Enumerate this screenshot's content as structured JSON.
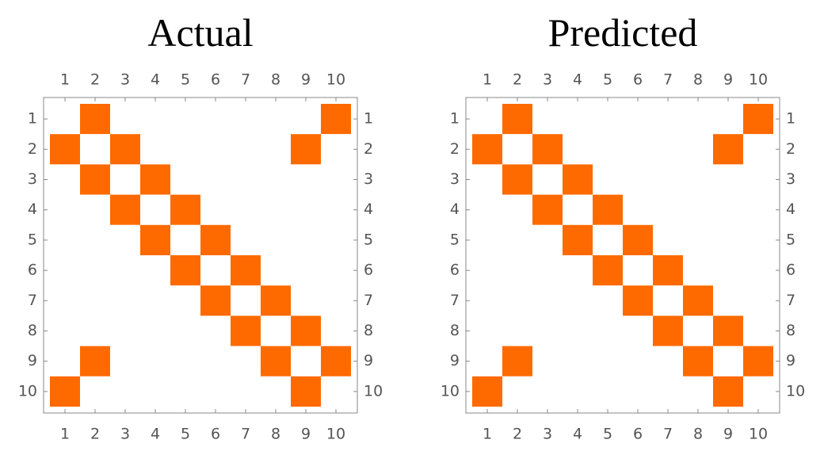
{
  "chart_data": [
    {
      "type": "matrix",
      "title": "Actual",
      "color": "#ff6a00",
      "empty_color": "#ffffff",
      "xlim": [
        0.5,
        10.5
      ],
      "ylim": [
        0.5,
        10.5
      ],
      "y_inverted": true,
      "xticks": [
        1,
        2,
        3,
        4,
        5,
        6,
        7,
        8,
        9,
        10
      ],
      "yticks": [
        1,
        2,
        3,
        4,
        5,
        6,
        7,
        8,
        9,
        10
      ],
      "z": [
        [
          0,
          1,
          0,
          0,
          0,
          0,
          0,
          0,
          0,
          1
        ],
        [
          1,
          0,
          1,
          0,
          0,
          0,
          0,
          0,
          1,
          0
        ],
        [
          0,
          1,
          0,
          1,
          0,
          0,
          0,
          0,
          0,
          0
        ],
        [
          0,
          0,
          1,
          0,
          1,
          0,
          0,
          0,
          0,
          0
        ],
        [
          0,
          0,
          0,
          1,
          0,
          1,
          0,
          0,
          0,
          0
        ],
        [
          0,
          0,
          0,
          0,
          1,
          0,
          1,
          0,
          0,
          0
        ],
        [
          0,
          0,
          0,
          0,
          0,
          1,
          0,
          1,
          0,
          0
        ],
        [
          0,
          0,
          0,
          0,
          0,
          0,
          1,
          0,
          1,
          0
        ],
        [
          0,
          1,
          0,
          0,
          0,
          0,
          0,
          1,
          0,
          1
        ],
        [
          1,
          0,
          0,
          0,
          0,
          0,
          0,
          0,
          1,
          0
        ]
      ]
    },
    {
      "type": "matrix",
      "title": "Predicted",
      "color": "#ff6a00",
      "empty_color": "#ffffff",
      "xlim": [
        0.5,
        10.5
      ],
      "ylim": [
        0.5,
        10.5
      ],
      "y_inverted": true,
      "xticks": [
        1,
        2,
        3,
        4,
        5,
        6,
        7,
        8,
        9,
        10
      ],
      "yticks": [
        1,
        2,
        3,
        4,
        5,
        6,
        7,
        8,
        9,
        10
      ],
      "z": [
        [
          0,
          1,
          0,
          0,
          0,
          0,
          0,
          0,
          0,
          1
        ],
        [
          1,
          0,
          1,
          0,
          0,
          0,
          0,
          0,
          1,
          0
        ],
        [
          0,
          1,
          0,
          1,
          0,
          0,
          0,
          0,
          0,
          0
        ],
        [
          0,
          0,
          1,
          0,
          1,
          0,
          0,
          0,
          0,
          0
        ],
        [
          0,
          0,
          0,
          1,
          0,
          1,
          0,
          0,
          0,
          0
        ],
        [
          0,
          0,
          0,
          0,
          1,
          0,
          1,
          0,
          0,
          0
        ],
        [
          0,
          0,
          0,
          0,
          0,
          1,
          0,
          1,
          0,
          0
        ],
        [
          0,
          0,
          0,
          0,
          0,
          0,
          1,
          0,
          1,
          0
        ],
        [
          0,
          1,
          0,
          0,
          0,
          0,
          0,
          1,
          0,
          1
        ],
        [
          1,
          0,
          0,
          0,
          0,
          0,
          0,
          0,
          1,
          0
        ]
      ]
    }
  ]
}
